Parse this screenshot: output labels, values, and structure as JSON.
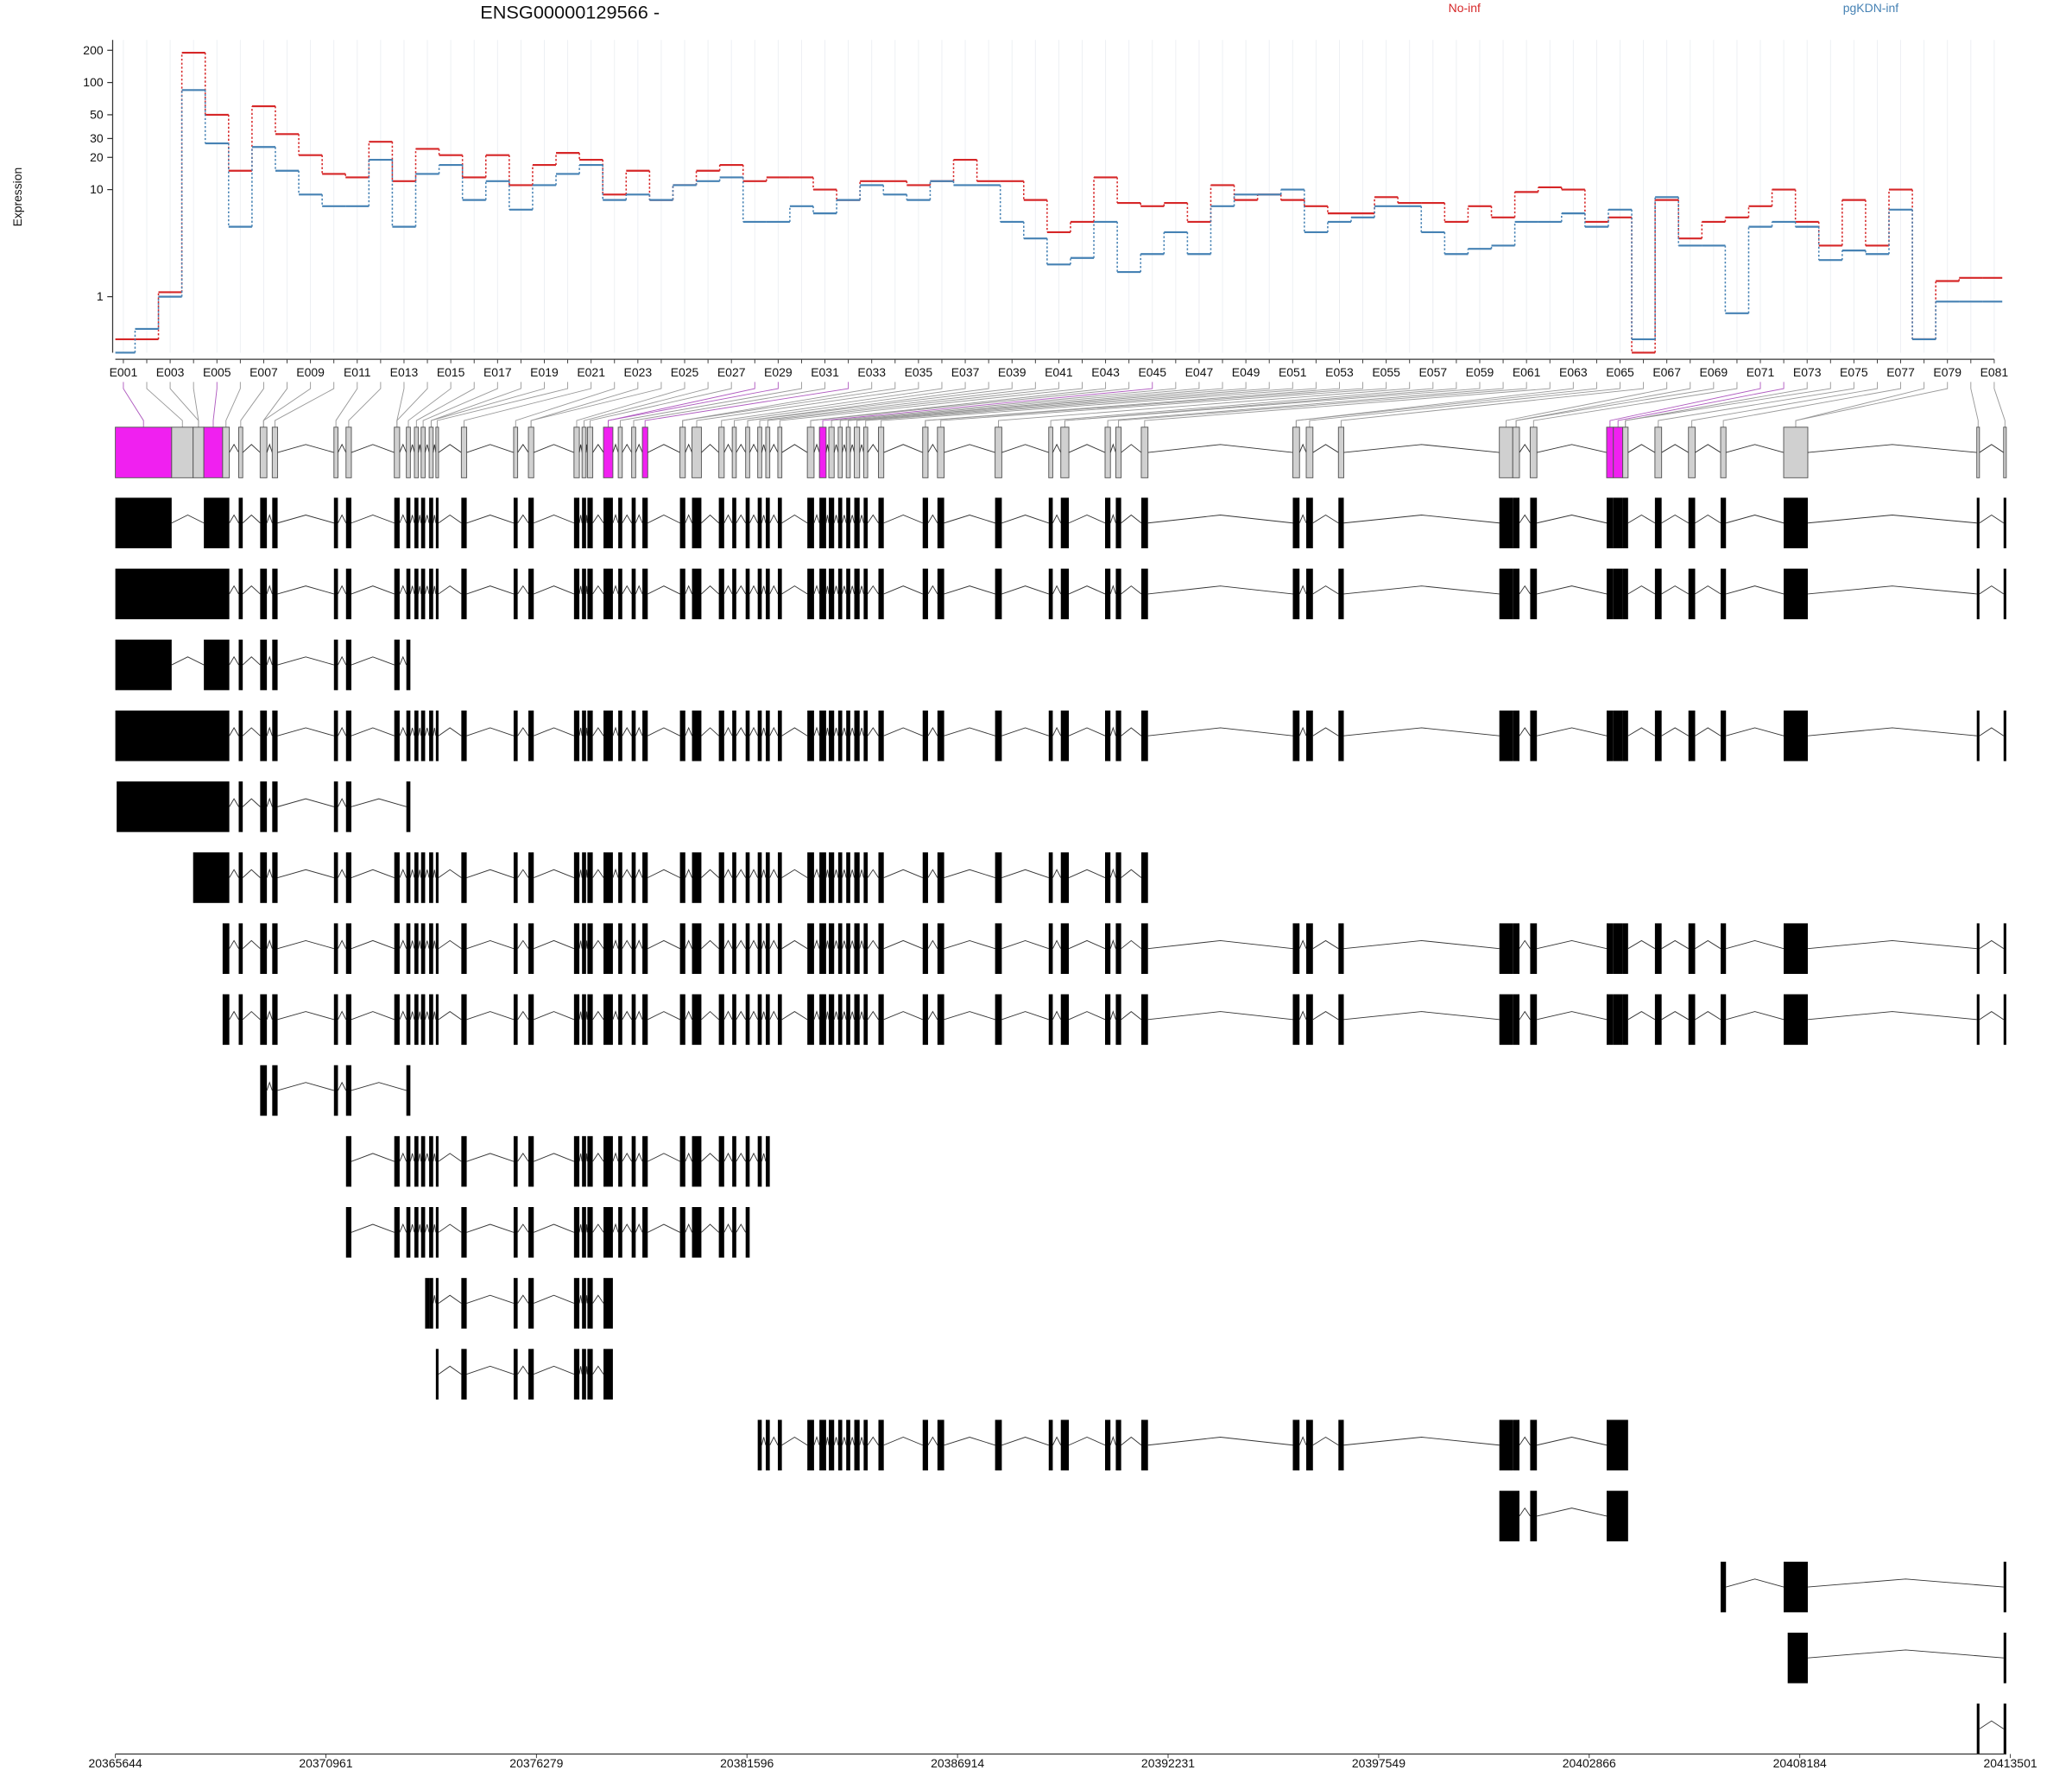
{
  "chart_data": [
    {
      "type": "line",
      "title": "ENSG00000129566 -",
      "ylabel": "Expression",
      "log_y": true,
      "grid": true,
      "ylim": [
        0.3,
        250
      ],
      "yticks": [
        200,
        100,
        50,
        30,
        20,
        10,
        1
      ],
      "categories": [
        "E001",
        null,
        "E003",
        null,
        "E005",
        null,
        "E007",
        null,
        "E009",
        null,
        "E011",
        null,
        "E013",
        null,
        "E015",
        null,
        "E017",
        null,
        "E019",
        null,
        "E021",
        null,
        "E023",
        null,
        "E025",
        null,
        "E027",
        null,
        "E029",
        null,
        "E031",
        null,
        "E033",
        null,
        "E035",
        null,
        "E037",
        null,
        "E039",
        null,
        "E041",
        null,
        "E043",
        null,
        "E045",
        null,
        "E047",
        null,
        "E049",
        null,
        "E051",
        null,
        "E053",
        null,
        "E055",
        null,
        "E057",
        null,
        "E059",
        null,
        "E061",
        null,
        "E063",
        null,
        "E065",
        null,
        "E067",
        null,
        "E069",
        null,
        "E071",
        null,
        "E073",
        null,
        "E075",
        null,
        "E077",
        null,
        "E079",
        null,
        "E081"
      ],
      "series": [
        {
          "name": "No-inf",
          "color": "#d62728",
          "values": [
            0.4,
            0.4,
            1.1,
            190,
            50,
            15,
            60,
            33,
            21,
            14,
            13,
            28,
            12,
            24,
            21,
            13,
            21,
            11,
            17,
            22,
            19,
            9,
            15,
            8,
            11,
            15,
            17,
            12,
            13,
            13,
            10,
            8,
            12,
            12,
            11,
            12,
            19,
            12,
            12,
            8,
            4,
            5,
            13,
            7.5,
            7,
            7.5,
            5,
            11,
            8,
            9,
            8,
            7,
            6,
            6,
            8.5,
            7.5,
            7.5,
            5,
            7,
            5.5,
            9.5,
            10.5,
            10,
            5,
            5.5,
            0.3,
            8,
            3.5,
            5,
            5.5,
            7,
            10,
            5,
            3,
            8,
            3,
            10,
            0.4,
            1.4,
            1.5,
            1.5
          ]
        },
        {
          "name": "pgKDN-inf",
          "color": "#4682b4",
          "values": [
            0.3,
            0.5,
            1.0,
            85,
            27,
            4.5,
            25,
            15,
            9,
            7,
            7,
            19,
            4.5,
            14,
            17,
            8,
            12,
            6.5,
            11,
            14,
            17,
            8,
            9,
            8,
            11,
            12,
            13,
            5,
            5,
            7,
            6,
            8,
            11,
            9,
            8,
            12,
            11,
            11,
            5,
            3.5,
            2,
            2.3,
            5,
            1.7,
            2.5,
            4,
            2.5,
            7,
            9,
            9,
            10,
            4,
            5,
            5.5,
            7,
            7,
            4,
            2.5,
            2.8,
            3,
            5,
            5,
            6,
            4.5,
            6.5,
            0.4,
            8.5,
            3,
            3,
            0.7,
            4.5,
            5,
            4.5,
            2.2,
            2.7,
            2.5,
            6.5,
            0.4,
            0.9,
            0.9,
            0.9
          ]
        }
      ]
    },
    {
      "type": "gene-model",
      "xlim": [
        20365644,
        20413501
      ],
      "xticks": [
        20365644,
        20370961,
        20376279,
        20381596,
        20386914,
        20392231,
        20397549,
        20402866,
        20408184,
        20413501
      ]
    }
  ]
}
